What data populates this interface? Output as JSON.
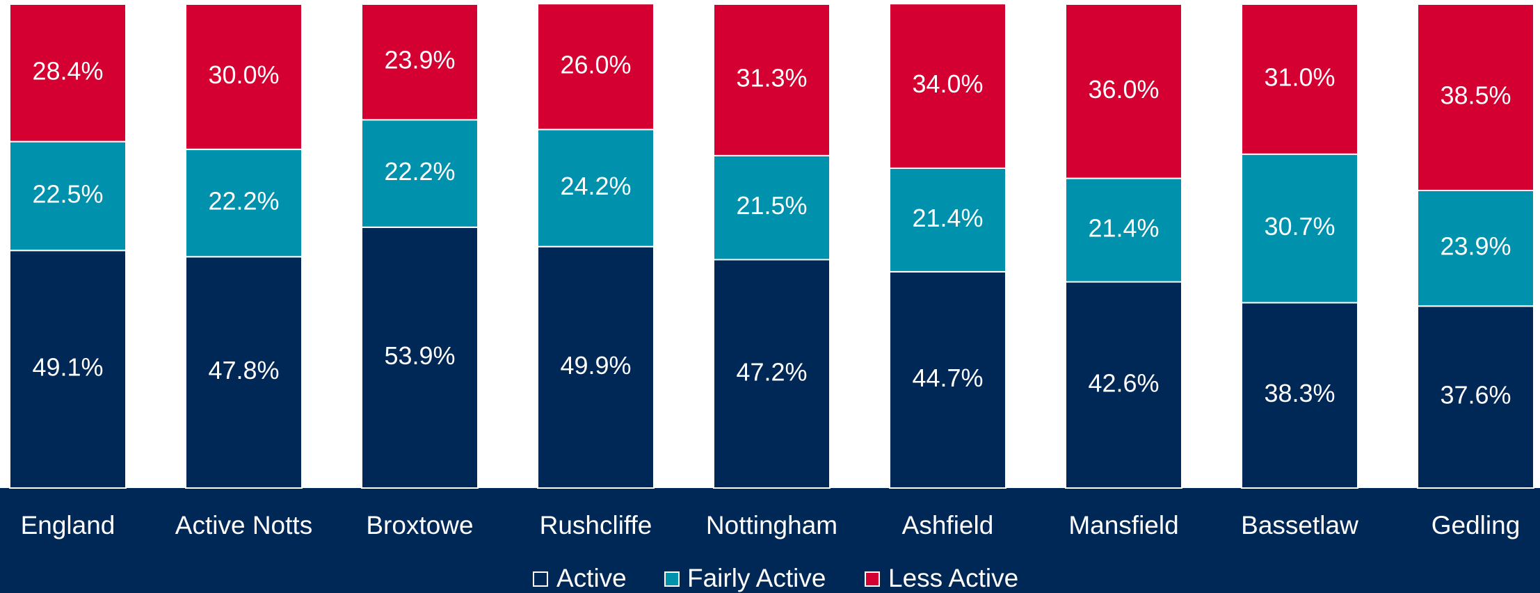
{
  "chart_data": {
    "type": "stacked_bar",
    "categories": [
      "England",
      "Active Notts",
      "Broxtowe",
      "Rushcliffe",
      "Nottingham",
      "Ashfield",
      "Mansfield",
      "Bassetlaw",
      "Gedling"
    ],
    "ylim": [
      0,
      100
    ],
    "series": [
      {
        "name": "Active",
        "color": "#002856",
        "values": [
          49.1,
          47.8,
          53.9,
          49.9,
          47.2,
          44.7,
          42.6,
          38.3,
          37.6
        ],
        "value_labels": [
          "49.1%",
          "47.8%",
          "53.9%",
          "49.9%",
          "47.2%",
          "44.7%",
          "42.6%",
          "38.3%",
          "37.6%"
        ]
      },
      {
        "name": "Fairly Active",
        "color": "#0091ad",
        "values": [
          22.5,
          22.2,
          22.2,
          24.2,
          21.5,
          21.4,
          21.4,
          30.7,
          23.9
        ],
        "value_labels": [
          "22.5%",
          "22.2%",
          "22.2%",
          "24.2%",
          "21.5%",
          "21.4%",
          "21.4%",
          "30.7%",
          "23.9%"
        ]
      },
      {
        "name": "Less Active",
        "color": "#d50032",
        "values": [
          28.4,
          30.0,
          23.9,
          26.0,
          31.3,
          34.0,
          36.0,
          31.0,
          38.5
        ],
        "value_labels": [
          "28.4%",
          "30.0%",
          "23.9%",
          "26.0%",
          "31.3%",
          "34.0%",
          "36.0%",
          "31.0%",
          "38.5%"
        ]
      }
    ]
  }
}
